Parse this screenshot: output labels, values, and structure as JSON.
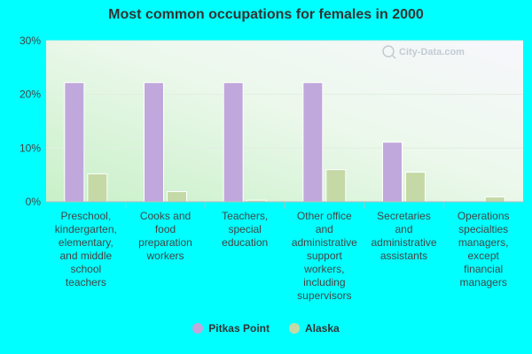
{
  "chart_data": {
    "type": "bar",
    "title": "Most common occupations for females in 2000",
    "categories": [
      [
        "Preschool,",
        "kindergarten,",
        "elementary,",
        "and middle",
        "school",
        "teachers"
      ],
      [
        "Cooks and",
        "food",
        "preparation",
        "workers"
      ],
      [
        "Teachers,",
        "special",
        "education"
      ],
      [
        "Other office",
        "and",
        "administrative",
        "support",
        "workers,",
        "including",
        "supervisors"
      ],
      [
        "Secretaries",
        "and",
        "administrative",
        "assistants"
      ],
      [
        "Operations",
        "specialties",
        "managers,",
        "except",
        "financial",
        "managers"
      ]
    ],
    "series": [
      {
        "name": "Pitkas Point",
        "color": "#c0a8dc",
        "values": [
          22.2,
          22.2,
          22.2,
          22.2,
          11.1,
          0
        ]
      },
      {
        "name": "Alaska",
        "color": "#c5d9a6",
        "values": [
          5.2,
          1.9,
          0.3,
          6.0,
          5.5,
          0.9
        ]
      }
    ],
    "yticks": [
      "0%",
      "10%",
      "20%",
      "30%"
    ],
    "ylim": [
      0,
      30
    ],
    "grid": true,
    "legend": "bottom"
  },
  "watermark": "City-Data.com"
}
